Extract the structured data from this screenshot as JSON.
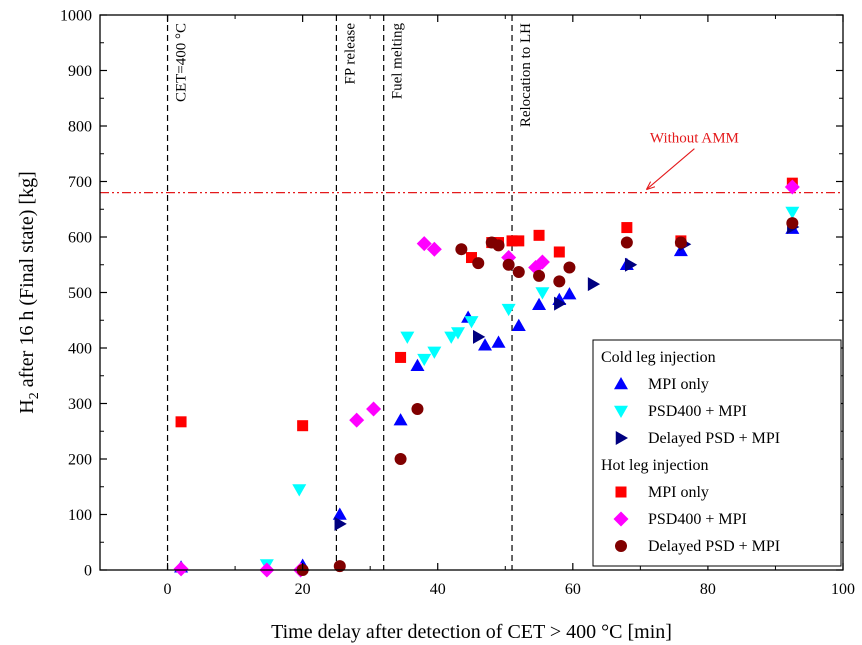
{
  "chart_data": {
    "type": "scatter",
    "xlabel": "Time delay after detection of CET > 400 °C [min]",
    "ylabel_main": "H",
    "ylabel_sub": "2",
    "ylabel_rest": " after 16 h (Final state) [kg]",
    "xlim": [
      -10,
      100
    ],
    "ylim": [
      0,
      1000
    ],
    "x_ticks": [
      0,
      20,
      40,
      60,
      80,
      100
    ],
    "x_tick_labels": [
      "0",
      "20",
      "40",
      "60",
      "80",
      "100"
    ],
    "y_ticks": [
      0,
      100,
      200,
      300,
      400,
      500,
      600,
      700,
      800,
      900,
      1000
    ],
    "y_tick_labels": [
      "0",
      "100",
      "200",
      "300",
      "400",
      "500",
      "600",
      "700",
      "800",
      "900",
      "1000"
    ],
    "grid": false,
    "legend_position": "lower-right",
    "vertical_lines": [
      {
        "x": 0,
        "label": "CET=400 °C"
      },
      {
        "x": 25,
        "label": "FP release"
      },
      {
        "x": 32,
        "label": "Fuel melting"
      },
      {
        "x": 51,
        "label": "Relocation to LH"
      }
    ],
    "reference_line": {
      "y": 680,
      "label": "Without AMM",
      "color": "#e41a1c",
      "label_x": 78,
      "label_y": 770
    },
    "legend_groups": [
      {
        "title": "Cold leg injection",
        "series_indices": [
          0,
          1,
          2
        ]
      },
      {
        "title": "Hot leg injection",
        "series_indices": [
          3,
          4,
          5
        ]
      }
    ],
    "series": [
      {
        "name": "MPI only",
        "marker": "triangle-up",
        "color": "#0000ff",
        "points": [
          [
            2,
            5
          ],
          [
            20,
            8
          ],
          [
            25.5,
            100
          ],
          [
            34.5,
            270
          ],
          [
            37,
            368
          ],
          [
            44.5,
            455
          ],
          [
            47,
            405
          ],
          [
            49,
            410
          ],
          [
            52,
            440
          ],
          [
            55,
            478
          ],
          [
            58,
            487
          ],
          [
            59.5,
            497
          ],
          [
            68,
            550
          ],
          [
            76,
            575
          ],
          [
            92.5,
            615
          ]
        ]
      },
      {
        "name": "PSD400 + MPI",
        "marker": "triangle-down",
        "color": "#00ffff",
        "points": [
          [
            14.7,
            10
          ],
          [
            19.5,
            145
          ],
          [
            35.5,
            420
          ],
          [
            38,
            380
          ],
          [
            39.5,
            393
          ],
          [
            42,
            420
          ],
          [
            43,
            428
          ],
          [
            45,
            448
          ],
          [
            50.5,
            470
          ],
          [
            55.5,
            500
          ],
          [
            92.5,
            645
          ]
        ]
      },
      {
        "name": "Delayed PSD + MPI",
        "marker": "triangle-right",
        "color": "#000080",
        "points": [
          [
            25.5,
            83
          ],
          [
            46,
            420
          ],
          [
            58,
            480
          ],
          [
            63,
            515
          ],
          [
            68.5,
            550
          ],
          [
            76.5,
            587
          ],
          [
            92.5,
            618
          ]
        ]
      },
      {
        "name": "MPI only",
        "marker": "square",
        "color": "#ff0000",
        "points": [
          [
            2,
            267
          ],
          [
            20,
            260
          ],
          [
            34.5,
            383
          ],
          [
            45,
            563
          ],
          [
            48,
            590
          ],
          [
            49,
            590
          ],
          [
            51,
            593
          ],
          [
            52,
            593
          ],
          [
            55,
            603
          ],
          [
            58,
            573
          ],
          [
            68,
            617
          ],
          [
            76,
            593
          ],
          [
            92.5,
            697
          ]
        ]
      },
      {
        "name": "PSD400 + MPI",
        "marker": "diamond",
        "color": "#ff00ff",
        "points": [
          [
            2,
            2
          ],
          [
            14.7,
            0
          ],
          [
            19.7,
            0
          ],
          [
            28,
            270
          ],
          [
            30.5,
            290
          ],
          [
            38,
            588
          ],
          [
            39.5,
            578
          ],
          [
            50.5,
            563
          ],
          [
            54.5,
            545
          ],
          [
            55.5,
            555
          ],
          [
            92.5,
            690
          ]
        ]
      },
      {
        "name": "Delayed PSD + MPI",
        "marker": "circle",
        "color": "#800000",
        "points": [
          [
            20,
            0
          ],
          [
            25.5,
            7
          ],
          [
            34.5,
            200
          ],
          [
            37,
            290
          ],
          [
            43.5,
            578
          ],
          [
            46,
            553
          ],
          [
            48,
            590
          ],
          [
            49,
            585
          ],
          [
            50.5,
            550
          ],
          [
            52,
            537
          ],
          [
            55,
            530
          ],
          [
            58,
            520
          ],
          [
            59.5,
            545
          ],
          [
            68,
            590
          ],
          [
            76,
            590
          ],
          [
            92.5,
            625
          ]
        ]
      }
    ]
  }
}
